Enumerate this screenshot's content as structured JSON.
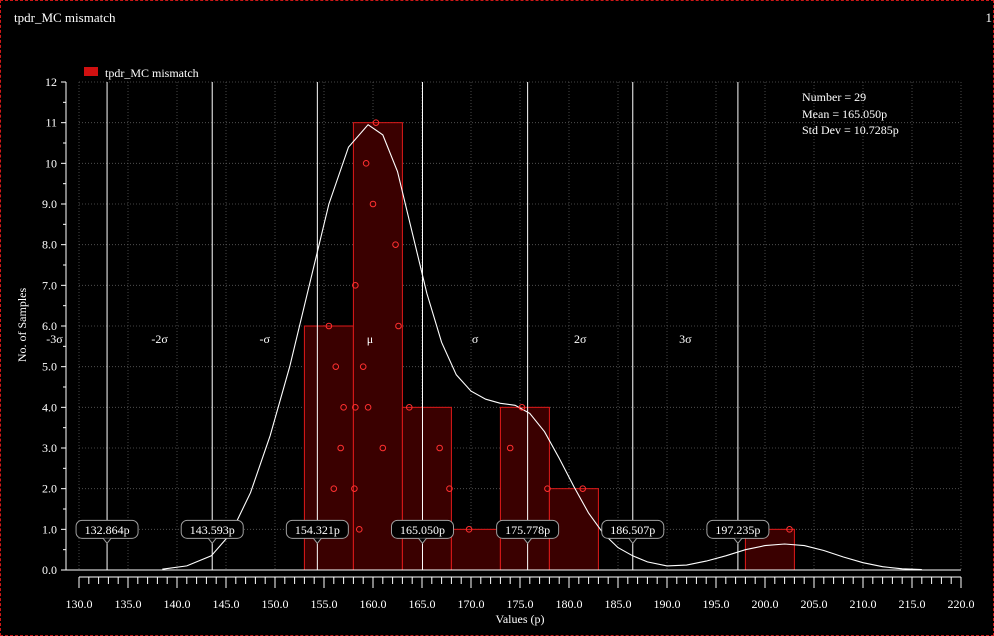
{
  "window": {
    "title": "tpdr_MC mismatch",
    "index": "1"
  },
  "chart_data": {
    "type": "bar",
    "title": "tpdr_MC mismatch",
    "xlabel": "Values (p)",
    "ylabel": "No. of Samples",
    "xlim": [
      130.0,
      220.0
    ],
    "ylim": [
      0.0,
      12.0
    ],
    "grid": true,
    "legend": {
      "position": "top-left",
      "label": "tpdr_MC mismatch",
      "color": "#d01010"
    },
    "x_ticks": [
      "130.0",
      "135.0",
      "140.0",
      "145.0",
      "150.0",
      "155.0",
      "160.0",
      "165.0",
      "170.0",
      "175.0",
      "180.0",
      "185.0",
      "190.0",
      "195.0",
      "200.0",
      "205.0",
      "210.0",
      "215.0",
      "220.0"
    ],
    "y_ticks": [
      "0.0",
      "1.0",
      "2.0",
      "3.0",
      "4.0",
      "5.0",
      "6.0",
      "7.0",
      "8.0",
      "9.0",
      "10",
      "11",
      "12"
    ],
    "bins": [
      {
        "x0": 153.0,
        "x1": 158.0,
        "count": 6
      },
      {
        "x0": 158.0,
        "x1": 163.0,
        "count": 11
      },
      {
        "x0": 163.0,
        "x1": 168.0,
        "count": 4
      },
      {
        "x0": 168.0,
        "x1": 173.0,
        "count": 1
      },
      {
        "x0": 173.0,
        "x1": 178.0,
        "count": 4
      },
      {
        "x0": 178.0,
        "x1": 183.0,
        "count": 2
      },
      {
        "x0": 198.0,
        "x1": 203.0,
        "count": 1
      }
    ],
    "samples": [
      {
        "x": 155.5,
        "y": 6
      },
      {
        "x": 156.2,
        "y": 5
      },
      {
        "x": 157.0,
        "y": 4
      },
      {
        "x": 156.7,
        "y": 3
      },
      {
        "x": 156.0,
        "y": 2
      },
      {
        "x": 158.2,
        "y": 7
      },
      {
        "x": 158.2,
        "y": 4
      },
      {
        "x": 158.1,
        "y": 2
      },
      {
        "x": 159.0,
        "y": 5
      },
      {
        "x": 158.6,
        "y": 1
      },
      {
        "x": 159.3,
        "y": 10
      },
      {
        "x": 160.0,
        "y": 9
      },
      {
        "x": 159.5,
        "y": 4
      },
      {
        "x": 160.3,
        "y": 11
      },
      {
        "x": 161.0,
        "y": 3
      },
      {
        "x": 162.3,
        "y": 8
      },
      {
        "x": 162.6,
        "y": 6
      },
      {
        "x": 163.7,
        "y": 4
      },
      {
        "x": 166.8,
        "y": 3
      },
      {
        "x": 167.8,
        "y": 2
      },
      {
        "x": 169.8,
        "y": 1
      },
      {
        "x": 174.0,
        "y": 3
      },
      {
        "x": 175.2,
        "y": 4
      },
      {
        "x": 175.0,
        "y": 1
      },
      {
        "x": 177.8,
        "y": 2
      },
      {
        "x": 181.4,
        "y": 2
      },
      {
        "x": 202.5,
        "y": 1
      }
    ],
    "density_curve": [
      [
        138.5,
        0.02
      ],
      [
        141,
        0.1
      ],
      [
        143.5,
        0.35
      ],
      [
        145.5,
        0.9
      ],
      [
        147.5,
        1.9
      ],
      [
        149.5,
        3.3
      ],
      [
        151.5,
        5.0
      ],
      [
        153.5,
        7.0
      ],
      [
        155.5,
        9.0
      ],
      [
        157.5,
        10.4
      ],
      [
        159.5,
        10.95
      ],
      [
        161.0,
        10.7
      ],
      [
        162.5,
        9.8
      ],
      [
        164.0,
        8.3
      ],
      [
        165.5,
        6.8
      ],
      [
        167.0,
        5.6
      ],
      [
        168.5,
        4.8
      ],
      [
        170.0,
        4.4
      ],
      [
        171.5,
        4.2
      ],
      [
        173.0,
        4.1
      ],
      [
        174.5,
        4.05
      ],
      [
        176.0,
        3.85
      ],
      [
        177.5,
        3.4
      ],
      [
        179.0,
        2.75
      ],
      [
        180.5,
        2.05
      ],
      [
        182.0,
        1.4
      ],
      [
        183.5,
        0.9
      ],
      [
        185.0,
        0.55
      ],
      [
        186.5,
        0.35
      ],
      [
        188.0,
        0.2
      ],
      [
        190.0,
        0.1
      ],
      [
        192.0,
        0.12
      ],
      [
        194.0,
        0.22
      ],
      [
        196.0,
        0.35
      ],
      [
        198.0,
        0.5
      ],
      [
        200.0,
        0.6
      ],
      [
        202.0,
        0.64
      ],
      [
        204.0,
        0.6
      ],
      [
        206.0,
        0.48
      ],
      [
        208.0,
        0.32
      ],
      [
        210.0,
        0.18
      ],
      [
        212.0,
        0.08
      ],
      [
        214.0,
        0.03
      ],
      [
        216.0,
        0.01
      ]
    ],
    "sigma_lines": [
      {
        "x": 132.864,
        "label": "-3σ",
        "value_label": "132.864p"
      },
      {
        "x": 143.593,
        "label": "-2σ",
        "value_label": "143.593p"
      },
      {
        "x": 154.321,
        "label": "-σ",
        "value_label": "154.321p"
      },
      {
        "x": 165.05,
        "label": "μ",
        "value_label": "165.050p"
      },
      {
        "x": 175.778,
        "label": "σ",
        "value_label": "175.778p"
      },
      {
        "x": 186.507,
        "label": "2σ",
        "value_label": "186.507p"
      },
      {
        "x": 197.235,
        "label": "3σ",
        "value_label": "197.235p"
      }
    ],
    "stats": {
      "number": "Number = 29",
      "mean": "Mean = 165.050p",
      "std_dev": "Std Dev = 10.7285p"
    }
  }
}
